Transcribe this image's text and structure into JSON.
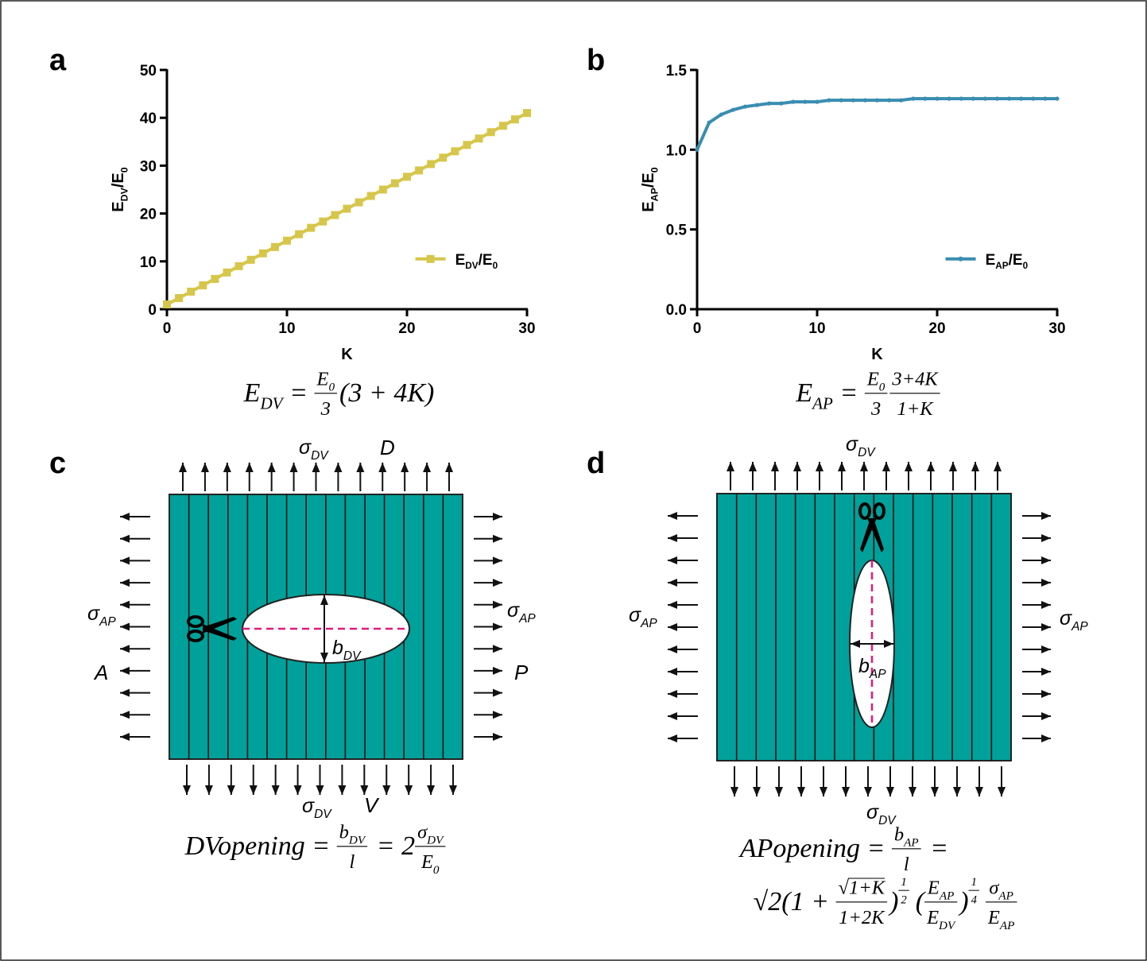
{
  "chart_data": [
    {
      "type": "line",
      "panel_label": "a",
      "xlabel": "K",
      "ylabel": [
        {
          "t": "E",
          "sub": "DV"
        },
        {
          "t": "/E",
          "sub": "0"
        }
      ],
      "x": [
        0,
        1,
        2,
        3,
        4,
        5,
        6,
        7,
        8,
        9,
        10,
        11,
        12,
        13,
        14,
        15,
        16,
        17,
        18,
        19,
        20,
        21,
        22,
        23,
        24,
        25,
        26,
        27,
        28,
        29,
        30
      ],
      "series": [
        {
          "name": [
            {
              "t": "E",
              "sub": "DV"
            },
            {
              "t": "/E",
              "sub": "0"
            }
          ],
          "color": "#d6c64b",
          "marker": "square",
          "values": [
            1,
            2.33,
            3.67,
            5,
            6.33,
            7.67,
            9,
            10.33,
            11.67,
            13,
            14.33,
            15.67,
            17,
            18.33,
            19.67,
            21,
            22.33,
            23.67,
            25,
            26.33,
            27.67,
            29,
            30.33,
            31.67,
            33,
            34.33,
            35.67,
            37,
            38.33,
            39.67,
            41
          ]
        }
      ],
      "xlim": [
        0,
        30
      ],
      "xticks": [
        0,
        10,
        20,
        30
      ],
      "ylim": [
        0,
        50
      ],
      "yticks": [
        0,
        10,
        20,
        30,
        40,
        50
      ],
      "legend": "lower right",
      "formula": [
        {
          "t": "E",
          "sub": "DV"
        },
        {
          "t": " = "
        },
        {
          "frac": [
            [
              {
                "t": "E",
                "sub": "0"
              }
            ],
            [
              {
                "t": "3"
              }
            ]
          ]
        },
        {
          "t": "(3 + 4K)"
        }
      ]
    },
    {
      "type": "line",
      "panel_label": "b",
      "xlabel": "K",
      "ylabel": [
        {
          "t": "E",
          "sub": "AP"
        },
        {
          "t": "/E",
          "sub": "0"
        }
      ],
      "x": [
        0,
        1,
        2,
        3,
        4,
        5,
        6,
        7,
        8,
        9,
        10,
        11,
        12,
        13,
        14,
        15,
        16,
        17,
        18,
        19,
        20,
        21,
        22,
        23,
        24,
        25,
        26,
        27,
        28,
        29,
        30
      ],
      "series": [
        {
          "name": [
            {
              "t": "E",
              "sub": "AP"
            },
            {
              "t": "/E",
              "sub": "0"
            }
          ],
          "color": "#3a8db1",
          "marker": "circle",
          "values": [
            1,
            1.17,
            1.22,
            1.25,
            1.27,
            1.28,
            1.29,
            1.29,
            1.3,
            1.3,
            1.3,
            1.31,
            1.31,
            1.31,
            1.31,
            1.31,
            1.31,
            1.31,
            1.32,
            1.32,
            1.32,
            1.32,
            1.32,
            1.32,
            1.32,
            1.32,
            1.32,
            1.32,
            1.32,
            1.32,
            1.32
          ]
        }
      ],
      "xlim": [
        0,
        30
      ],
      "xticks": [
        0,
        10,
        20,
        30
      ],
      "ylim": [
        0,
        1.5
      ],
      "yticks": [
        {
          "value": 0,
          "label": "0.0"
        },
        0.5,
        {
          "value": 1,
          "label": "1.0"
        },
        1.5
      ],
      "legend": "lower right",
      "formula": [
        {
          "t": "E",
          "sub": "AP"
        },
        {
          "t": " = "
        },
        {
          "frac": [
            [
              {
                "t": "E",
                "sub": "0"
              }
            ],
            [
              {
                "t": "3"
              }
            ]
          ]
        },
        {
          "frac": [
            [
              {
                "t": "3+4K"
              }
            ],
            [
              {
                "t": "1+K"
              }
            ]
          ]
        }
      ]
    }
  ],
  "diagram_c": {
    "panel_label": "c",
    "top_stress": [
      {
        "t": "σ",
        "sub": "DV"
      }
    ],
    "top_label": "D",
    "left_stress": [
      {
        "t": "σ",
        "sub": "AP"
      }
    ],
    "left_label": "A",
    "right_stress": [
      {
        "t": "σ",
        "sub": "AP"
      }
    ],
    "right_label": "P",
    "bottom_stress": [
      {
        "t": "σ",
        "sub": "DV"
      }
    ],
    "bottom_label": "V",
    "opening_label": [
      {
        "t": "b",
        "sub": "DV"
      }
    ],
    "formula": [
      [
        {
          "t": "DVopening"
        },
        {
          "t": " = "
        },
        {
          "frac": [
            [
              {
                "t": "b",
                "sub": "DV"
              }
            ],
            [
              {
                "t": "l"
              }
            ]
          ]
        },
        {
          "t": " = 2"
        },
        {
          "frac": [
            [
              {
                "t": "σ",
                "sub": "DV"
              }
            ],
            [
              {
                "t": "E",
                "sub": "0"
              }
            ]
          ]
        }
      ]
    ]
  },
  "diagram_d": {
    "panel_label": "d",
    "top_stress": [
      {
        "t": "σ",
        "sub": "DV"
      }
    ],
    "left_stress": [
      {
        "t": "σ",
        "sub": "AP"
      }
    ],
    "right_stress": [
      {
        "t": "σ",
        "sub": "AP"
      }
    ],
    "bottom_stress": [
      {
        "t": "σ",
        "sub": "DV"
      }
    ],
    "opening_label": [
      {
        "t": "b",
        "sub": "AP"
      }
    ],
    "formula": [
      [
        {
          "t": "APopening"
        },
        {
          "t": " = "
        },
        {
          "frac": [
            [
              {
                "t": "b",
                "sub": "AP"
              }
            ],
            [
              {
                "t": "l"
              }
            ]
          ]
        },
        {
          "t": " ="
        }
      ],
      [
        {
          "t": "√2(1 + "
        },
        {
          "frac": [
            [
              {
                "t": "√"
              },
              {
                "over": [
                  {
                    "t": "1+K"
                  }
                ]
              }
            ],
            [
              {
                "t": "1+2K"
              }
            ]
          ]
        },
        {
          "t": ")"
        },
        {
          "sup": [
            {
              "frac": [
                [
                  {
                    "t": "1"
                  }
                ],
                [
                  {
                    "t": "2"
                  }
                ]
              ]
            }
          ]
        },
        {
          "t": "("
        },
        {
          "frac": [
            [
              {
                "t": "E",
                "sub": "AP"
              }
            ],
            [
              {
                "t": "E",
                "sub": "DV"
              }
            ]
          ]
        },
        {
          "t": ")"
        },
        {
          "sup": [
            {
              "frac": [
                [
                  {
                    "t": "1"
                  }
                ],
                [
                  {
                    "t": "4"
                  }
                ]
              ]
            }
          ]
        },
        {
          "frac": [
            [
              {
                "t": "σ",
                "sub": "AP"
              }
            ],
            [
              {
                "t": "E",
                "sub": "AP"
              }
            ]
          ]
        }
      ]
    ]
  }
}
